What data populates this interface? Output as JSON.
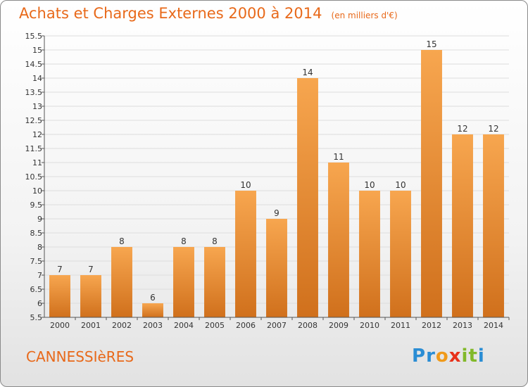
{
  "header": {
    "title": "Achats et Charges Externes 2000 à 2014",
    "subtitle": "(en milliers d'€)"
  },
  "footer": {
    "town": "CANNESSIèRES",
    "logo": {
      "letters": [
        "P",
        "r",
        "o",
        "x",
        "i",
        "t",
        "i"
      ],
      "colors": [
        "#2a8dd4",
        "#2a8dd4",
        "#f09a1a",
        "#e8311a",
        "#82b92a",
        "#82b92a",
        "#2a8dd4"
      ]
    }
  },
  "chart_data": {
    "type": "bar",
    "title": "Achats et Charges Externes 2000 à 2014",
    "subtitle": "(en milliers d'€)",
    "categories": [
      "2000",
      "2001",
      "2002",
      "2003",
      "2004",
      "2005",
      "2006",
      "2007",
      "2008",
      "2009",
      "2010",
      "2011",
      "2012",
      "2013",
      "2014"
    ],
    "values": [
      7,
      7,
      8,
      6,
      8,
      8,
      10,
      9,
      14,
      11,
      10,
      10,
      15,
      12,
      12
    ],
    "data_labels": [
      "7",
      "7",
      "8",
      "6",
      "8",
      "8",
      "10",
      "9",
      "14",
      "11",
      "10",
      "10",
      "15",
      "12",
      "12"
    ],
    "ylim": [
      5.5,
      15.5
    ],
    "yticks": [
      5.5,
      6,
      6.5,
      7,
      7.5,
      8,
      8.5,
      9,
      9.5,
      10,
      10.5,
      11,
      11.5,
      12,
      12.5,
      13,
      13.5,
      14,
      14.5,
      15,
      15.5
    ],
    "ytick_labels": [
      "5.5",
      "6",
      "6.5",
      "7",
      "7.5",
      "8",
      "8.5",
      "9",
      "9.5",
      "10",
      "10.5",
      "11",
      "11.5",
      "12",
      "12.5",
      "13",
      "13.5",
      "14",
      "14.5",
      "15",
      "15.5"
    ],
    "xlabel": "",
    "ylabel": "",
    "grid": true,
    "colors": {
      "bar_top": "#f7a64f",
      "bar_bottom": "#d0701c",
      "grid": "#dddddd",
      "axis": "#555555"
    }
  }
}
